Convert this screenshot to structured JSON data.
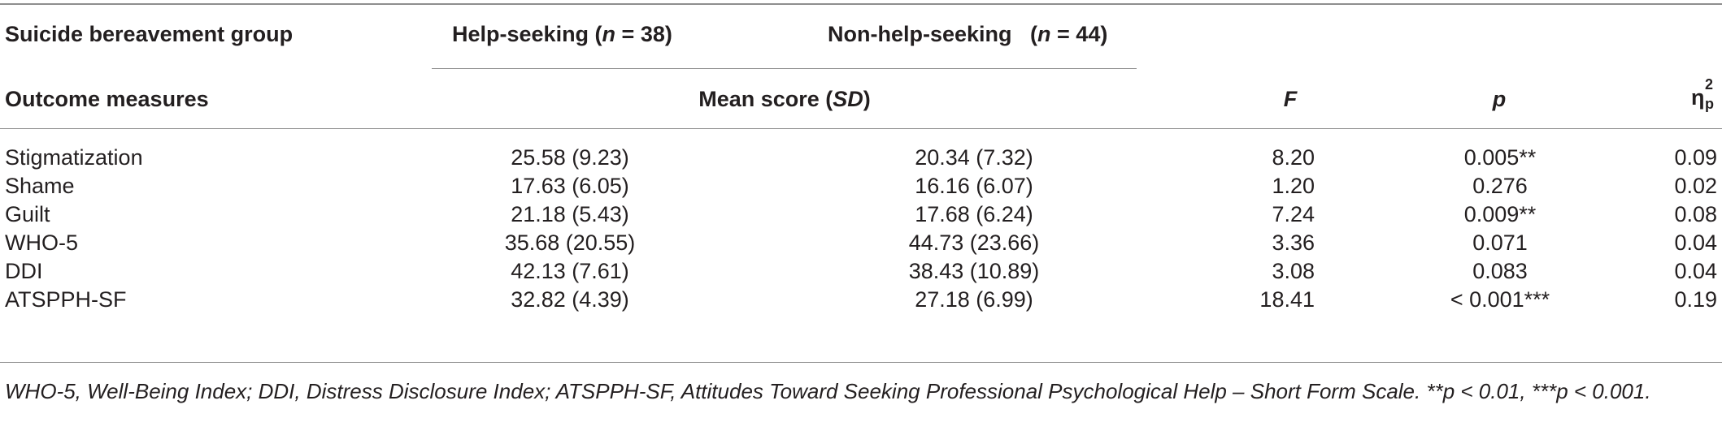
{
  "header": {
    "group_label": "Suicide bereavement group",
    "help_seeking_label": "Help-seeking (",
    "help_seeking_n": "n",
    "help_seeking_count": " = 38)",
    "non_help_seeking_label": "Non-help-seeking   (",
    "non_help_seeking_n": "n",
    "non_help_seeking_count": " = 44)",
    "outcome_label": "Outcome measures",
    "mean_score_label": "Mean score (",
    "mean_score_sd": "SD",
    "mean_score_close": ")",
    "f_label": "F",
    "p_label": "p",
    "eta_symbol": "η",
    "eta_superscript": "2",
    "eta_subscript": "p"
  },
  "rows": [
    {
      "measure": "Stigmatization",
      "help": "25.58 (9.23)",
      "nonhelp": "20.34 (7.32)",
      "f": "8.20",
      "p": "0.005**",
      "eta": "0.09"
    },
    {
      "measure": "Shame",
      "help": "17.63 (6.05)",
      "nonhelp": "16.16 (6.07)",
      "f": "1.20",
      "p": "0.276",
      "eta": "0.02"
    },
    {
      "measure": "Guilt",
      "help": "21.18 (5.43)",
      "nonhelp": "17.68 (6.24)",
      "f": "7.24",
      "p": "0.009**",
      "eta": "0.08"
    },
    {
      "measure": "WHO-5",
      "help": "35.68 (20.55)",
      "nonhelp": "44.73 (23.66)",
      "f": "3.36",
      "p": "0.071",
      "eta": "0.04"
    },
    {
      "measure": "DDI",
      "help": "42.13 (7.61)",
      "nonhelp": "38.43 (10.89)",
      "f": "3.08",
      "p": "0.083",
      "eta": "0.04"
    },
    {
      "measure": "ATSPPH-SF",
      "help": "32.82 (4.39)",
      "nonhelp": "27.18 (6.99)",
      "f": "18.41",
      "p": "< 0.001***",
      "eta": "0.19"
    }
  ],
  "footnote": "WHO-5, Well-Being Index; DDI, Distress Disclosure Index; ATSPPH-SF, Attitudes Toward Seeking Professional Psychological Help – Short Form Scale. **p < 0.01, ***p < 0.001."
}
